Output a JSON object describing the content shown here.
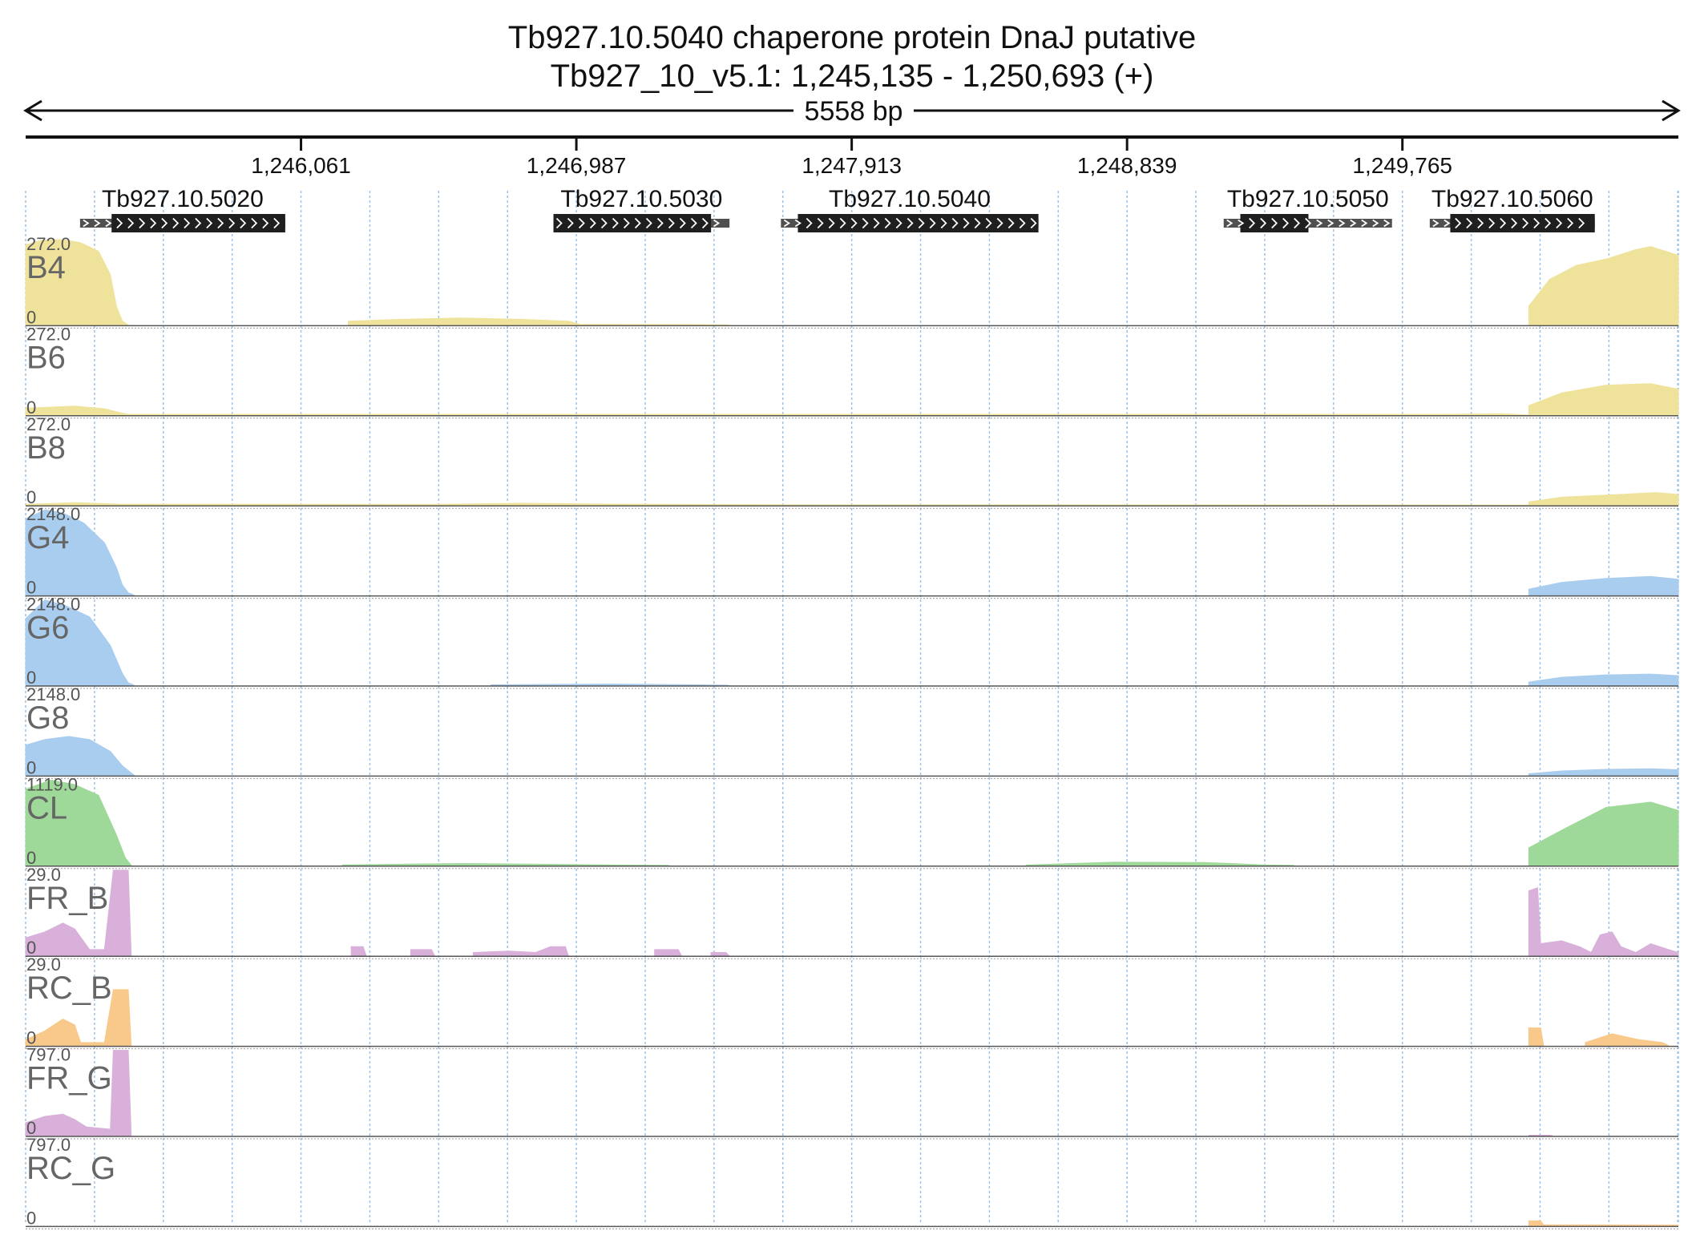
{
  "title": {
    "gene": "Tb927.10.5040  chaperone protein DnaJ  putative",
    "locus": "Tb927_10_v5.1: 1,245,135 - 1,250,693 (+)"
  },
  "span_label": "5558 bp",
  "colors": {
    "B": "#efe39b",
    "G": "#a9cdee",
    "CL": "#9fd99a",
    "FR": "#d8b0da",
    "RC": "#f9c98b",
    "gene_cds": "#1f1f1f",
    "gene_utr": "#505050",
    "grid": "#9cc2e6"
  },
  "chart_data": {
    "type": "area",
    "x_range": [
      1245135,
      1250693
    ],
    "x_ticks": [
      {
        "value": 1246061,
        "label": "1,246,061"
      },
      {
        "value": 1246987,
        "label": "1,246,987"
      },
      {
        "value": 1247913,
        "label": "1,247,913"
      },
      {
        "value": 1248839,
        "label": "1,248,839"
      },
      {
        "value": 1249765,
        "label": "1,249,765"
      }
    ],
    "genes": [
      {
        "name": "Tb927.10.5020",
        "start": 1245318,
        "end": 1246008,
        "cds_start": 1245424,
        "cds_end": 1246008
      },
      {
        "name": "Tb927.10.5030",
        "start": 1246910,
        "end": 1247502,
        "cds_start": 1246910,
        "cds_end": 1247440
      },
      {
        "name": "Tb927.10.5040",
        "start": 1247675,
        "end": 1248541,
        "cds_start": 1247732,
        "cds_end": 1248541
      },
      {
        "name": "Tb927.10.5050",
        "start": 1249164,
        "end": 1249730,
        "cds_start": 1249220,
        "cds_end": 1249449
      },
      {
        "name": "Tb927.10.5060",
        "start": 1249857,
        "end": 1250412,
        "cds_start": 1249926,
        "cds_end": 1250412
      }
    ],
    "tracks": [
      {
        "name": "B4",
        "max": "272.0",
        "zero": "0",
        "ymax": 272,
        "color_key": "B",
        "segments": [
          [
            [
              1245135,
              255
            ],
            [
              1245190,
              270
            ],
            [
              1245260,
              272
            ],
            [
              1245320,
              262
            ],
            [
              1245380,
              235
            ],
            [
              1245420,
              160
            ],
            [
              1245440,
              60
            ],
            [
              1245460,
              12
            ],
            [
              1245480,
              0
            ]
          ],
          [
            [
              1246220,
              12
            ],
            [
              1246400,
              18
            ],
            [
              1246600,
              22
            ],
            [
              1246800,
              18
            ],
            [
              1246960,
              12
            ],
            [
              1247000,
              2
            ],
            [
              1247400,
              1
            ],
            [
              1247500,
              0
            ]
          ],
          [
            [
              1250190,
              60
            ],
            [
              1250260,
              145
            ],
            [
              1250350,
              190
            ],
            [
              1250450,
              210
            ],
            [
              1250550,
              240
            ],
            [
              1250600,
              250
            ],
            [
              1250693,
              222
            ]
          ]
        ]
      },
      {
        "name": "B6",
        "max": "272.0",
        "zero": "0",
        "ymax": 272,
        "color_key": "B",
        "segments": [
          [
            [
              1245135,
              22
            ],
            [
              1245300,
              28
            ],
            [
              1245400,
              20
            ],
            [
              1245450,
              8
            ],
            [
              1245480,
              2
            ],
            [
              1249900,
              2
            ],
            [
              1250100,
              4
            ],
            [
              1250190,
              0
            ]
          ],
          [
            [
              1250190,
              30
            ],
            [
              1250300,
              70
            ],
            [
              1250450,
              95
            ],
            [
              1250600,
              100
            ],
            [
              1250693,
              82
            ]
          ]
        ]
      },
      {
        "name": "B8",
        "max": "272.0",
        "zero": "0",
        "ymax": 272,
        "color_key": "B",
        "segments": [
          [
            [
              1245135,
              2
            ],
            [
              1245300,
              8
            ],
            [
              1245450,
              3
            ],
            [
              1246500,
              2
            ],
            [
              1246800,
              6
            ],
            [
              1247100,
              3
            ],
            [
              1247600,
              1
            ],
            [
              1250190,
              0
            ]
          ],
          [
            [
              1250190,
              10
            ],
            [
              1250300,
              25
            ],
            [
              1250500,
              34
            ],
            [
              1250620,
              40
            ],
            [
              1250693,
              34
            ]
          ]
        ]
      },
      {
        "name": "G4",
        "max": "2148.0",
        "zero": "0",
        "ymax": 2148,
        "color_key": "G",
        "segments": [
          [
            [
              1245135,
              1920
            ],
            [
              1245200,
              2148
            ],
            [
              1245260,
              2070
            ],
            [
              1245330,
              1820
            ],
            [
              1245400,
              1320
            ],
            [
              1245440,
              700
            ],
            [
              1245460,
              260
            ],
            [
              1245480,
              60
            ],
            [
              1245500,
              0
            ]
          ],
          [
            [
              1250190,
              150
            ],
            [
              1250300,
              320
            ],
            [
              1250450,
              420
            ],
            [
              1250600,
              470
            ],
            [
              1250693,
              400
            ]
          ]
        ]
      },
      {
        "name": "G6",
        "max": "2148.0",
        "zero": "0",
        "ymax": 2148,
        "color_key": "G",
        "segments": [
          [
            [
              1245135,
              1680
            ],
            [
              1245200,
              2148
            ],
            [
              1245270,
              2000
            ],
            [
              1245350,
              1720
            ],
            [
              1245420,
              1000
            ],
            [
              1245460,
              300
            ],
            [
              1245480,
              60
            ],
            [
              1245500,
              0
            ]
          ],
          [
            [
              1246700,
              10
            ],
            [
              1247100,
              30
            ],
            [
              1247400,
              10
            ],
            [
              1247500,
              0
            ]
          ],
          [
            [
              1250190,
              80
            ],
            [
              1250300,
              200
            ],
            [
              1250450,
              260
            ],
            [
              1250600,
              280
            ],
            [
              1250693,
              240
            ]
          ]
        ]
      },
      {
        "name": "G8",
        "max": "2148.0",
        "zero": "0",
        "ymax": 2148,
        "color_key": "G",
        "segments": [
          [
            [
              1245135,
              760
            ],
            [
              1245200,
              900
            ],
            [
              1245280,
              980
            ],
            [
              1245350,
              900
            ],
            [
              1245420,
              600
            ],
            [
              1245460,
              240
            ],
            [
              1245500,
              0
            ]
          ],
          [
            [
              1250190,
              40
            ],
            [
              1250300,
              110
            ],
            [
              1250450,
              150
            ],
            [
              1250600,
              165
            ],
            [
              1250693,
              140
            ]
          ]
        ]
      },
      {
        "name": "CL",
        "max": "1119.0",
        "zero": "0",
        "ymax": 1119,
        "color_key": "CL",
        "segments": [
          [
            [
              1245135,
              1000
            ],
            [
              1245220,
              1119
            ],
            [
              1245300,
              1060
            ],
            [
              1245380,
              920
            ],
            [
              1245440,
              400
            ],
            [
              1245470,
              100
            ],
            [
              1245490,
              0
            ]
          ],
          [
            [
              1246200,
              6
            ],
            [
              1246600,
              24
            ],
            [
              1246900,
              14
            ],
            [
              1247100,
              6
            ],
            [
              1247300,
              0
            ]
          ],
          [
            [
              1248500,
              4
            ],
            [
              1248800,
              42
            ],
            [
              1249100,
              38
            ],
            [
              1249300,
              6
            ],
            [
              1249400,
              0
            ]
          ],
          [
            [
              1250190,
              230
            ],
            [
              1250300,
              460
            ],
            [
              1250450,
              760
            ],
            [
              1250600,
              830
            ],
            [
              1250693,
              720
            ]
          ]
        ]
      },
      {
        "name": "FR_B",
        "max": "29.0",
        "zero": "0",
        "ymax": 29,
        "color_key": "FR",
        "segments": [
          [
            [
              1245135,
              6
            ],
            [
              1245200,
              8
            ],
            [
              1245260,
              11
            ],
            [
              1245300,
              9
            ],
            [
              1245350,
              2
            ],
            [
              1245400,
              2
            ],
            [
              1245430,
              29
            ],
            [
              1245480,
              29
            ],
            [
              1245490,
              0
            ]
          ],
          [
            [
              1246230,
              3
            ],
            [
              1246270,
              3
            ],
            [
              1246280,
              0
            ]
          ],
          [
            [
              1246430,
              2
            ],
            [
              1246500,
              2
            ],
            [
              1246510,
              0
            ]
          ],
          [
            [
              1246640,
              1
            ],
            [
              1246760,
              1.5
            ],
            [
              1246850,
              1
            ],
            [
              1246900,
              3
            ],
            [
              1246950,
              3
            ],
            [
              1246960,
              0
            ]
          ],
          [
            [
              1247250,
              2
            ],
            [
              1247330,
              2
            ],
            [
              1247340,
              0
            ]
          ],
          [
            [
              1247440,
              1
            ],
            [
              1247490,
              1
            ],
            [
              1247500,
              0
            ]
          ],
          [
            [
              1250190,
              22
            ],
            [
              1250220,
              23
            ],
            [
              1250230,
              4
            ],
            [
              1250300,
              5
            ],
            [
              1250360,
              3
            ],
            [
              1250400,
              1
            ],
            [
              1250430,
              7
            ],
            [
              1250470,
              8
            ],
            [
              1250500,
              3
            ],
            [
              1250550,
              1
            ],
            [
              1250600,
              4
            ],
            [
              1250660,
              2
            ],
            [
              1250693,
              1
            ]
          ]
        ]
      },
      {
        "name": "RC_B",
        "max": "29.0",
        "zero": "0",
        "ymax": 29,
        "color_key": "RC",
        "segments": [
          [
            [
              1245135,
              2
            ],
            [
              1245200,
              5
            ],
            [
              1245260,
              9
            ],
            [
              1245300,
              7
            ],
            [
              1245320,
              1
            ],
            [
              1245400,
              1
            ],
            [
              1245430,
              19
            ],
            [
              1245480,
              19
            ],
            [
              1245490,
              0
            ]
          ],
          [
            [
              1250190,
              6
            ],
            [
              1250230,
              6
            ],
            [
              1250240,
              0
            ]
          ],
          [
            [
              1250380,
              1
            ],
            [
              1250470,
              4
            ],
            [
              1250560,
              2
            ],
            [
              1250640,
              1
            ],
            [
              1250660,
              0
            ]
          ]
        ]
      },
      {
        "name": "FR_G",
        "max": "797.0",
        "zero": "0",
        "ymax": 797,
        "color_key": "FR",
        "segments": [
          [
            [
              1245135,
              120
            ],
            [
              1245200,
              180
            ],
            [
              1245260,
              200
            ],
            [
              1245300,
              150
            ],
            [
              1245340,
              80
            ],
            [
              1245420,
              60
            ],
            [
              1245430,
              797
            ],
            [
              1245480,
              797
            ],
            [
              1245490,
              0
            ]
          ],
          [
            [
              1250190,
              4
            ],
            [
              1250260,
              4
            ],
            [
              1250270,
              0
            ]
          ]
        ]
      },
      {
        "name": "RC_G",
        "max": "797.0",
        "zero": "0",
        "ymax": 797,
        "color_key": "RC",
        "segments": [
          [
            [
              1250190,
              45
            ],
            [
              1250230,
              45
            ],
            [
              1250240,
              8
            ],
            [
              1250693,
              6
            ]
          ]
        ]
      }
    ]
  }
}
